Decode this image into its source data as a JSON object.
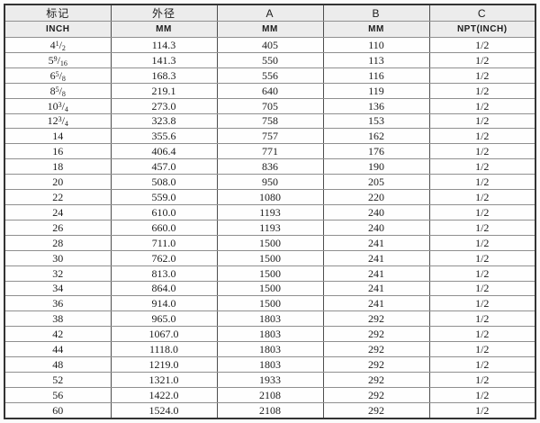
{
  "table": {
    "columns": [
      {
        "title": "标记",
        "unit": "INCH"
      },
      {
        "title": "外径",
        "unit": "MM"
      },
      {
        "title": "A",
        "unit": "MM"
      },
      {
        "title": "B",
        "unit": "MM"
      },
      {
        "title": "C",
        "unit": "NPT(INCH)"
      }
    ],
    "rows": [
      {
        "inch_whole": "4",
        "inch_num": "1",
        "inch_den": "2",
        "od": "114.3",
        "a": "405",
        "b": "110",
        "c": "1/2"
      },
      {
        "inch_whole": "5",
        "inch_num": "9",
        "inch_den": "16",
        "od": "141.3",
        "a": "550",
        "b": "113",
        "c": "1/2"
      },
      {
        "inch_whole": "6",
        "inch_num": "5",
        "inch_den": "8",
        "od": "168.3",
        "a": "556",
        "b": "116",
        "c": "1/2"
      },
      {
        "inch_whole": "8",
        "inch_num": "5",
        "inch_den": "8",
        "od": "219.1",
        "a": "640",
        "b": "119",
        "c": "1/2"
      },
      {
        "inch_whole": "10",
        "inch_num": "3",
        "inch_den": "4",
        "od": "273.0",
        "a": "705",
        "b": "136",
        "c": "1/2"
      },
      {
        "inch_whole": "12",
        "inch_num": "3",
        "inch_den": "4",
        "od": "323.8",
        "a": "758",
        "b": "153",
        "c": "1/2"
      },
      {
        "inch_whole": "14",
        "inch_num": "",
        "inch_den": "",
        "od": "355.6",
        "a": "757",
        "b": "162",
        "c": "1/2"
      },
      {
        "inch_whole": "16",
        "inch_num": "",
        "inch_den": "",
        "od": "406.4",
        "a": "771",
        "b": "176",
        "c": "1/2"
      },
      {
        "inch_whole": "18",
        "inch_num": "",
        "inch_den": "",
        "od": "457.0",
        "a": "836",
        "b": "190",
        "c": "1/2"
      },
      {
        "inch_whole": "20",
        "inch_num": "",
        "inch_den": "",
        "od": "508.0",
        "a": "950",
        "b": "205",
        "c": "1/2"
      },
      {
        "inch_whole": "22",
        "inch_num": "",
        "inch_den": "",
        "od": "559.0",
        "a": "1080",
        "b": "220",
        "c": "1/2"
      },
      {
        "inch_whole": "24",
        "inch_num": "",
        "inch_den": "",
        "od": "610.0",
        "a": "1193",
        "b": "240",
        "c": "1/2"
      },
      {
        "inch_whole": "26",
        "inch_num": "",
        "inch_den": "",
        "od": "660.0",
        "a": "1193",
        "b": "240",
        "c": "1/2"
      },
      {
        "inch_whole": "28",
        "inch_num": "",
        "inch_den": "",
        "od": "711.0",
        "a": "1500",
        "b": "241",
        "c": "1/2"
      },
      {
        "inch_whole": "30",
        "inch_num": "",
        "inch_den": "",
        "od": "762.0",
        "a": "1500",
        "b": "241",
        "c": "1/2"
      },
      {
        "inch_whole": "32",
        "inch_num": "",
        "inch_den": "",
        "od": "813.0",
        "a": "1500",
        "b": "241",
        "c": "1/2"
      },
      {
        "inch_whole": "34",
        "inch_num": "",
        "inch_den": "",
        "od": "864.0",
        "a": "1500",
        "b": "241",
        "c": "1/2"
      },
      {
        "inch_whole": "36",
        "inch_num": "",
        "inch_den": "",
        "od": "914.0",
        "a": "1500",
        "b": "241",
        "c": "1/2"
      },
      {
        "inch_whole": "38",
        "inch_num": "",
        "inch_den": "",
        "od": "965.0",
        "a": "1803",
        "b": "292",
        "c": "1/2"
      },
      {
        "inch_whole": "42",
        "inch_num": "",
        "inch_den": "",
        "od": "1067.0",
        "a": "1803",
        "b": "292",
        "c": "1/2"
      },
      {
        "inch_whole": "44",
        "inch_num": "",
        "inch_den": "",
        "od": "1118.0",
        "a": "1803",
        "b": "292",
        "c": "1/2"
      },
      {
        "inch_whole": "48",
        "inch_num": "",
        "inch_den": "",
        "od": "1219.0",
        "a": "1803",
        "b": "292",
        "c": "1/2"
      },
      {
        "inch_whole": "52",
        "inch_num": "",
        "inch_den": "",
        "od": "1321.0",
        "a": "1933",
        "b": "292",
        "c": "1/2"
      },
      {
        "inch_whole": "56",
        "inch_num": "",
        "inch_den": "",
        "od": "1422.0",
        "a": "2108",
        "b": "292",
        "c": "1/2"
      },
      {
        "inch_whole": "60",
        "inch_num": "",
        "inch_den": "",
        "od": "1524.0",
        "a": "2108",
        "b": "292",
        "c": "1/2"
      }
    ]
  }
}
